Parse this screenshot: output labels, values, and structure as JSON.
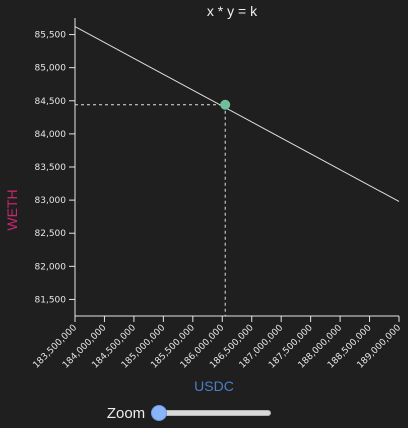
{
  "chart_data": {
    "type": "line",
    "title": "x * y = k",
    "xlabel": "USDC",
    "ylabel": "WETH",
    "xlim": [
      183500000,
      189000000
    ],
    "ylim": [
      81250,
      85750
    ],
    "x_ticks": [
      183500000,
      184000000,
      184500000,
      185000000,
      185500000,
      186000000,
      186500000,
      187000000,
      187500000,
      188000000,
      188500000,
      189000000
    ],
    "x_tick_labels": [
      "183,500,000",
      "184,000,000",
      "184,500,000",
      "185,000,000",
      "185,500,000",
      "186,000,000",
      "186,500,000",
      "187,000,000",
      "187,500,000",
      "188,000,000",
      "188,500,000",
      "189,000,000"
    ],
    "y_ticks": [
      81500,
      82000,
      82500,
      83000,
      83500,
      84000,
      84500,
      85000,
      85500
    ],
    "y_tick_labels": [
      "81,500",
      "82,000",
      "82,500",
      "83,000",
      "83,500",
      "84,000",
      "84,500",
      "85,000",
      "85,500"
    ],
    "series": [
      {
        "x": [
          183500000,
          189000000
        ],
        "y": [
          85620,
          82980
        ]
      }
    ],
    "marker": {
      "x": 186050000,
      "y": 84440
    },
    "colors": {
      "background": "#1f1f1f",
      "line": "#e0e0e0",
      "marker": "#6fc09a",
      "xlabel": "#4a7fc8",
      "ylabel": "#c4286f",
      "guide": "#e0e0e0"
    }
  },
  "zoom": {
    "label": "Zoom",
    "value": 0
  }
}
